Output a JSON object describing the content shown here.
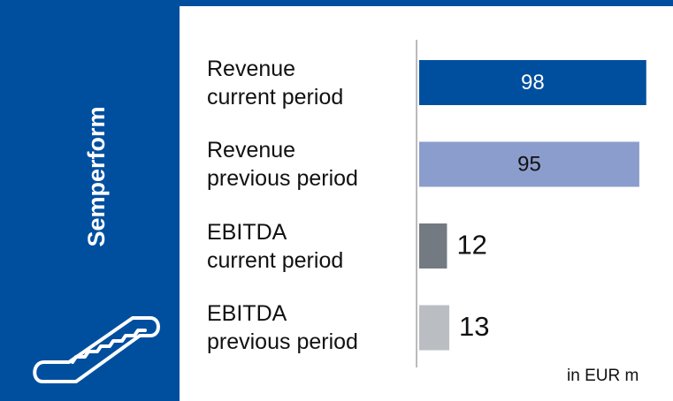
{
  "chart_data": {
    "type": "hbar",
    "panel_title": "Semperform",
    "categories": [
      "Revenue\ncurrent period",
      "Revenue\nprevious period",
      "EBITDA\ncurrent period",
      "EBITDA\nprevious period"
    ],
    "values": [
      98,
      95,
      12,
      13
    ],
    "colors": [
      "#004f9f",
      "#8b9dcc",
      "#737a81",
      "#babec3"
    ],
    "xlim": [
      0,
      100
    ],
    "note": "in EUR m"
  }
}
